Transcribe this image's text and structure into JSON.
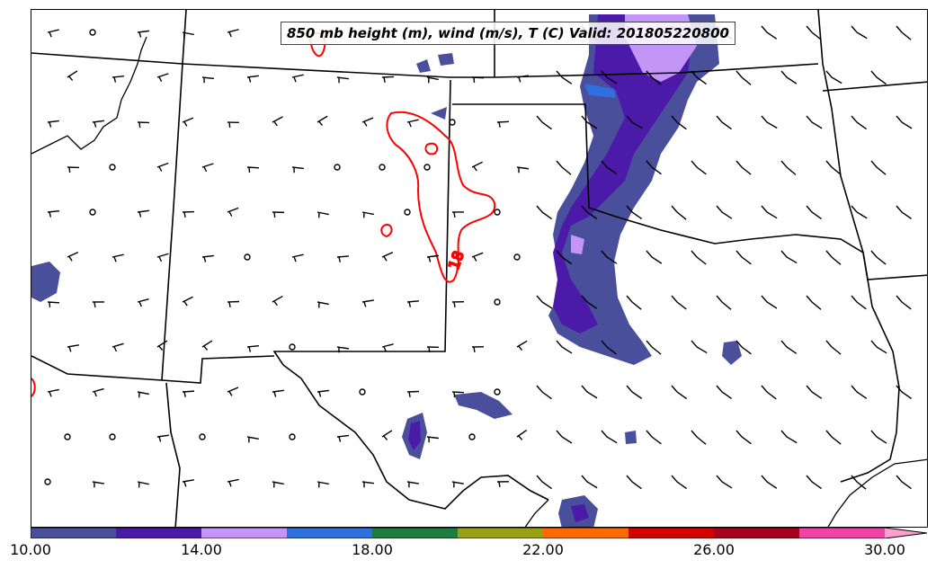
{
  "title": "850 mb height (m), wind (m/s), T (C) Valid: 201805220800",
  "contour_label": "18",
  "colorbar": {
    "colors": [
      "#4a4f9b",
      "#4b1aa8",
      "#c395f7",
      "#2f6fe0",
      "#1e7c3d",
      "#98a014",
      "#ff6a00",
      "#d60000",
      "#a8001f",
      "#f242a5"
    ],
    "extend_color": "#ff9fd0",
    "ticks": [
      "10.00",
      "14.00",
      "18.00",
      "22.00",
      "26.00",
      "30.00"
    ]
  },
  "legend_colors": {
    "contour": "#ff0000",
    "borders": "#000000"
  }
}
